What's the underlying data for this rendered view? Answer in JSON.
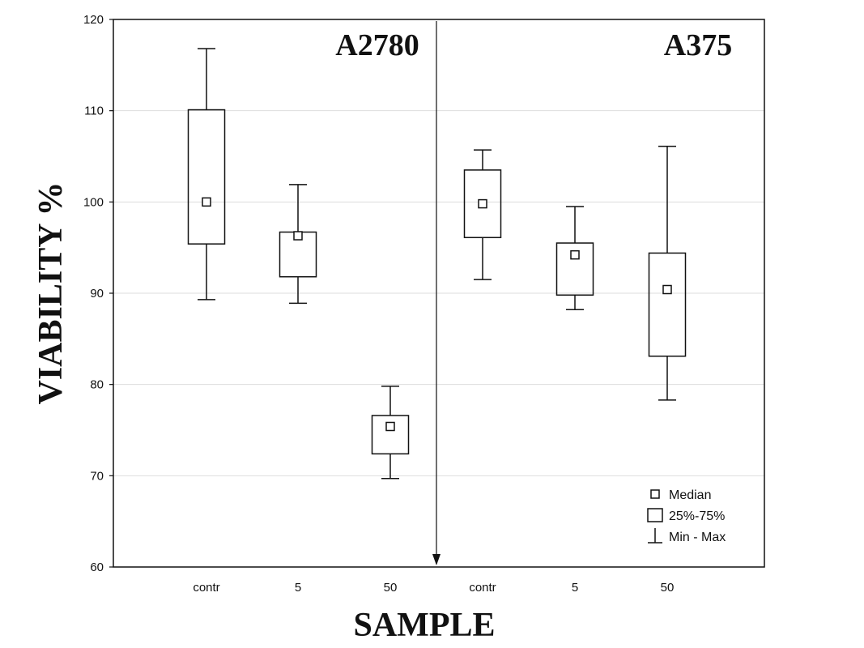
{
  "chart_data": {
    "type": "box",
    "xlabel": "SAMPLE",
    "ylabel": "VIABILITY %",
    "ylim": [
      60,
      120
    ],
    "yticks": [
      60,
      70,
      80,
      90,
      100,
      110,
      120
    ],
    "grid": "horizontal",
    "groups": [
      "A2780",
      "A375"
    ],
    "categories": [
      "contr",
      "5",
      "50",
      "contr",
      "5",
      "50"
    ],
    "boxes": [
      {
        "group": "A2780",
        "label": "contr",
        "min": 89.3,
        "q1": 95.4,
        "median": 100.0,
        "q3": 110.1,
        "max": 116.8
      },
      {
        "group": "A2780",
        "label": "5",
        "min": 88.9,
        "q1": 91.8,
        "median": 96.3,
        "q3": 96.7,
        "max": 101.9
      },
      {
        "group": "A2780",
        "label": "50",
        "min": 69.7,
        "q1": 72.4,
        "median": 75.4,
        "q3": 76.6,
        "max": 79.8
      },
      {
        "group": "A375",
        "label": "contr",
        "min": 91.5,
        "q1": 96.1,
        "median": 99.8,
        "q3": 103.5,
        "max": 105.7
      },
      {
        "group": "A375",
        "label": "5",
        "min": 88.2,
        "q1": 89.8,
        "median": 94.2,
        "q3": 95.5,
        "max": 99.5
      },
      {
        "group": "A375",
        "label": "50",
        "min": 78.3,
        "q1": 83.1,
        "median": 90.4,
        "q3": 94.4,
        "max": 106.1
      }
    ],
    "legend": {
      "position": "bottom-right",
      "items": [
        "Median",
        "25%-75%",
        "Min - Max"
      ]
    },
    "colors": {
      "line": "#111111",
      "grid": "#dddddd",
      "background": "#ffffff"
    }
  }
}
